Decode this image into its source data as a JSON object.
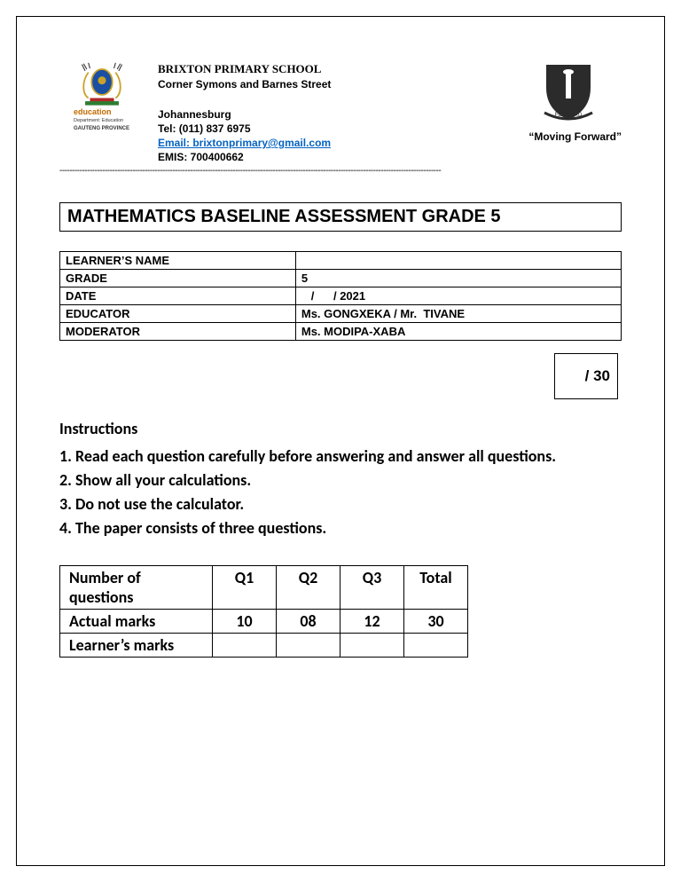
{
  "header": {
    "school_name": "BRIXTON PRIMARY SCHOOL",
    "address": "Corner Symons and Barnes Street",
    "city": "Johannesburg",
    "tel": "Tel: (011) 837 6975",
    "email_label": "Email: brixtonprimary@gmail.com",
    "emis": "EMIS: 700400662",
    "motto": "“Moving Forward”",
    "edu_word": "education",
    "edu_sub1": "Department: Education",
    "edu_sub2": "GAUTENG PROVINCE"
  },
  "title": "MATHEMATICS BASELINE ASSESSMENT GRADE 5",
  "info": {
    "rows": [
      {
        "label": "LEARNER’S NAME",
        "value": ""
      },
      {
        "label": "GRADE",
        "value": "5"
      },
      {
        "label": "DATE",
        "value": "   /      / 2021"
      },
      {
        "label": "EDUCATOR",
        "value": "Ms. GONGXEKA / Mr.  TIVANE"
      },
      {
        "label": "MODERATOR",
        "value": "Ms. MODIPA-XABA"
      }
    ]
  },
  "total_score": "/ 30",
  "instructions": {
    "heading": "Instructions",
    "items": [
      "1. Read each question carefully before answering and answer all questions.",
      "2. Show all your calculations.",
      "3. Do not use the calculator.",
      "4. The paper consists of three questions."
    ]
  },
  "marks_table": {
    "headers": [
      "Number of questions",
      "Q1",
      "Q2",
      "Q3",
      "Total"
    ],
    "rows": [
      {
        "label": "Actual marks",
        "cells": [
          "10",
          "08",
          "12",
          "30"
        ]
      },
      {
        "label": "Learner’s marks",
        "cells": [
          "",
          "",
          "",
          ""
        ]
      }
    ]
  },
  "colors": {
    "link": "#0563c1",
    "crest_blue": "#1a4fa3",
    "crest_gold": "#c9a227",
    "crest_red": "#b02828",
    "shield_dark": "#2b2b2b"
  }
}
